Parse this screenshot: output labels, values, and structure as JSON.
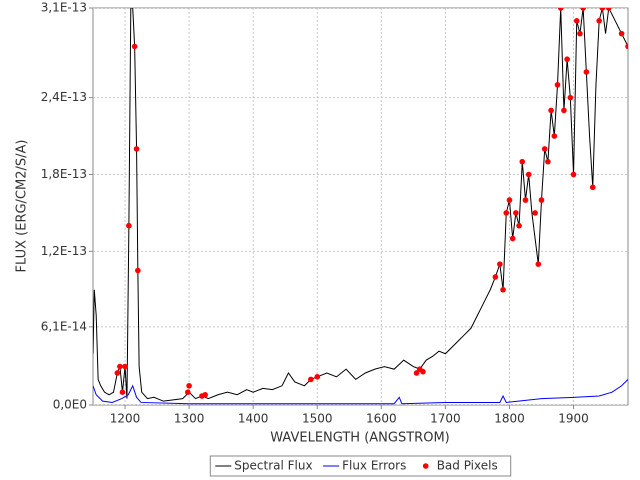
{
  "chart_data": {
    "type": "line",
    "x_label": "WAVELENGTH (ANGSTROM)",
    "y_label": "FLUX (ERG/CM2/S/A)",
    "xlim": [
      1150,
      1985
    ],
    "xticks": [
      1200,
      1300,
      1400,
      1500,
      1600,
      1700,
      1800,
      1900
    ],
    "ylim": [
      0,
      3.1e-13
    ],
    "yticks": [
      {
        "value": 0,
        "label": "0,0E0"
      },
      {
        "value": 6.1e-14,
        "label": "6,1E-14"
      },
      {
        "value": 1.2e-13,
        "label": "1,2E-13"
      },
      {
        "value": 1.8e-13,
        "label": "1,8E-13"
      },
      {
        "value": 2.4e-13,
        "label": "2,4E-13"
      },
      {
        "value": 3.1e-13,
        "label": "3,1E-13"
      }
    ],
    "grid": true,
    "legend": "bottom",
    "series": [
      {
        "name": "Spectral Flux",
        "color": "#000000",
        "kind": "line",
        "x": [
          1150,
          1152,
          1155,
          1158,
          1162,
          1168,
          1175,
          1182,
          1188,
          1192,
          1196,
          1200,
          1203,
          1206,
          1209,
          1212,
          1215,
          1218,
          1220,
          1222,
          1226,
          1235,
          1245,
          1260,
          1275,
          1290,
          1300,
          1310,
          1320,
          1330,
          1345,
          1360,
          1375,
          1390,
          1400,
          1415,
          1430,
          1445,
          1455,
          1465,
          1480,
          1490,
          1500,
          1515,
          1530,
          1545,
          1560,
          1575,
          1590,
          1605,
          1620,
          1635,
          1650,
          1660,
          1670,
          1680,
          1690,
          1700,
          1710,
          1720,
          1730,
          1740,
          1750,
          1760,
          1770,
          1778,
          1785,
          1790,
          1795,
          1800,
          1805,
          1810,
          1815,
          1820,
          1825,
          1830,
          1835,
          1840,
          1845,
          1850,
          1855,
          1860,
          1865,
          1870,
          1875,
          1880,
          1885,
          1890,
          1895,
          1900,
          1905,
          1910,
          1915,
          1920,
          1925,
          1930,
          1935,
          1940,
          1945,
          1950,
          1955,
          1965,
          1975,
          1985
        ],
        "values": [
          4e-14,
          9e-14,
          7e-14,
          2e-14,
          1.5e-14,
          1e-14,
          8e-15,
          1e-14,
          2.5e-14,
          3e-14,
          1e-14,
          3e-14,
          5e-15,
          1.4e-13,
          3.1e-13,
          3.1e-13,
          2.8e-13,
          2e-13,
          1.05e-13,
          3e-14,
          1e-14,
          5e-15,
          6e-15,
          3e-15,
          4e-15,
          5e-15,
          1e-14,
          5e-15,
          7e-15,
          5e-15,
          8e-15,
          1e-14,
          8e-15,
          1.2e-14,
          1e-14,
          1.3e-14,
          1.2e-14,
          1.5e-14,
          2.5e-14,
          1.8e-14,
          1.5e-14,
          2e-14,
          2.2e-14,
          2.5e-14,
          2.2e-14,
          2.8e-14,
          2e-14,
          2.5e-14,
          2.8e-14,
          3e-14,
          2.8e-14,
          3.5e-14,
          3e-14,
          2.8e-14,
          3.5e-14,
          3.8e-14,
          4.2e-14,
          4e-14,
          4.5e-14,
          5e-14,
          5.5e-14,
          6e-14,
          7e-14,
          8e-14,
          9e-14,
          1e-13,
          1.1e-13,
          9e-14,
          1.5e-13,
          1.6e-13,
          1.3e-13,
          1.5e-13,
          1.4e-13,
          1.9e-13,
          1.6e-13,
          1.8e-13,
          1.5e-13,
          1.3e-13,
          1.1e-13,
          1.6e-13,
          2e-13,
          1.9e-13,
          2.3e-13,
          2.1e-13,
          2.5e-13,
          3.1e-13,
          2.3e-13,
          2.7e-13,
          2.4e-13,
          1.8e-13,
          3e-13,
          2.9e-13,
          3.1e-13,
          2.6e-13,
          2.1e-13,
          1.7e-13,
          2.5e-13,
          3e-13,
          3.1e-13,
          2.9e-13,
          3.1e-13,
          3e-13,
          2.9e-13,
          2.8e-13
        ]
      },
      {
        "name": "Flux Errors",
        "color": "#0000ff",
        "kind": "line",
        "x": [
          1150,
          1155,
          1165,
          1180,
          1195,
          1205,
          1212,
          1218,
          1225,
          1300,
          1400,
          1500,
          1620,
          1628,
          1632,
          1700,
          1785,
          1790,
          1795,
          1850,
          1900,
          1940,
          1960,
          1975,
          1985
        ],
        "values": [
          1.5e-14,
          8e-15,
          3e-15,
          2e-15,
          5e-15,
          8e-15,
          1.5e-14,
          6e-15,
          2e-15,
          1e-15,
          1e-15,
          1e-15,
          1e-15,
          6e-15,
          1e-15,
          2e-15,
          2e-15,
          7e-15,
          2e-15,
          5e-15,
          6e-15,
          7e-15,
          1e-14,
          1.5e-14,
          2e-14
        ]
      },
      {
        "name": "Bad Pixels",
        "color": "#ff0000",
        "kind": "scatter",
        "x": [
          1188,
          1192,
          1196,
          1200,
          1206,
          1215,
          1218,
          1220,
          1298,
          1300,
          1320,
          1325,
          1490,
          1500,
          1655,
          1660,
          1665,
          1778,
          1785,
          1790,
          1795,
          1800,
          1805,
          1810,
          1815,
          1820,
          1825,
          1830,
          1840,
          1845,
          1850,
          1855,
          1860,
          1865,
          1870,
          1875,
          1880,
          1885,
          1890,
          1895,
          1900,
          1905,
          1910,
          1915,
          1920,
          1930,
          1940,
          1945,
          1955,
          1975,
          1985
        ],
        "values": [
          2.5e-14,
          3e-14,
          1e-14,
          3e-14,
          1.4e-13,
          2.8e-13,
          2e-13,
          1.05e-13,
          1e-14,
          1.5e-14,
          7e-15,
          8e-15,
          2e-14,
          2.2e-14,
          2.5e-14,
          2.8e-14,
          2.6e-14,
          1e-13,
          1.1e-13,
          9e-14,
          1.5e-13,
          1.6e-13,
          1.3e-13,
          1.5e-13,
          1.4e-13,
          1.9e-13,
          1.6e-13,
          1.8e-13,
          1.5e-13,
          1.1e-13,
          1.6e-13,
          2e-13,
          1.9e-13,
          2.3e-13,
          2.1e-13,
          2.5e-13,
          3.1e-13,
          2.3e-13,
          2.7e-13,
          2.4e-13,
          1.8e-13,
          3e-13,
          2.9e-13,
          3.1e-13,
          2.6e-13,
          1.7e-13,
          3e-13,
          3.1e-13,
          3.1e-13,
          2.9e-13,
          2.8e-13
        ]
      }
    ]
  }
}
